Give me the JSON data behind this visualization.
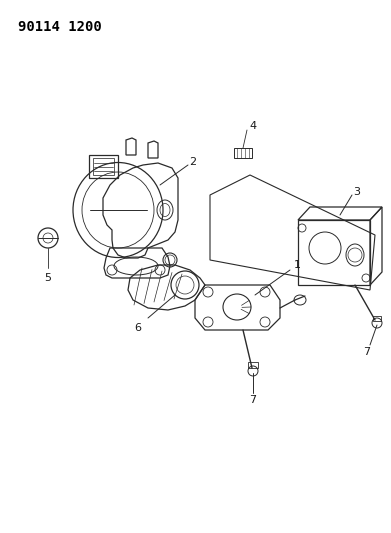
{
  "title": "90114 1200",
  "title_fontsize": 10,
  "title_fontweight": "bold",
  "bg_color": "#ffffff",
  "line_color": "#2a2a2a",
  "figsize": [
    3.91,
    5.33
  ],
  "dpi": 100,
  "label_fontsize": 7.5,
  "label_color": "#1a1a1a"
}
